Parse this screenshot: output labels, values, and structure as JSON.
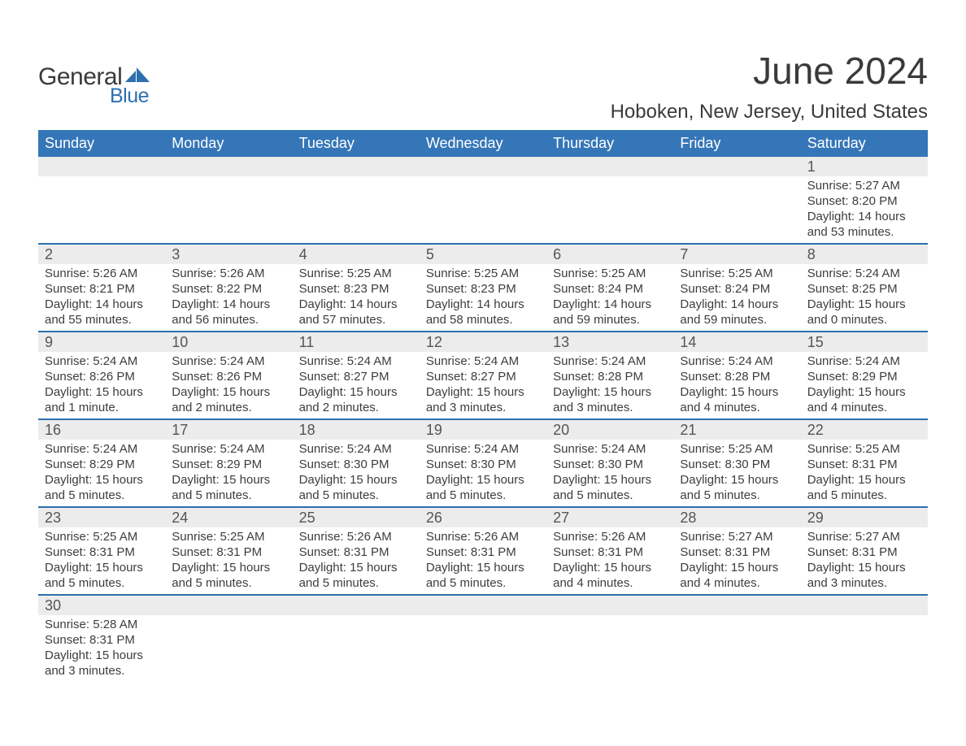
{
  "colors": {
    "header_bg": "#3576b8",
    "daynum_bg": "#ececec",
    "row_border": "#2d6fb0",
    "logo_blue": "#2d6fb0",
    "text": "#3a3a3a"
  },
  "logo": {
    "line1": "General",
    "line2": "Blue"
  },
  "title": "June 2024",
  "location": "Hoboken, New Jersey, United States",
  "weekdays": [
    "Sunday",
    "Monday",
    "Tuesday",
    "Wednesday",
    "Thursday",
    "Friday",
    "Saturday"
  ],
  "weeks": [
    [
      null,
      null,
      null,
      null,
      null,
      null,
      {
        "d": "1",
        "sr": "Sunrise: 5:27 AM",
        "ss": "Sunset: 8:20 PM",
        "dl": "Daylight: 14 hours and 53 minutes."
      }
    ],
    [
      {
        "d": "2",
        "sr": "Sunrise: 5:26 AM",
        "ss": "Sunset: 8:21 PM",
        "dl": "Daylight: 14 hours and 55 minutes."
      },
      {
        "d": "3",
        "sr": "Sunrise: 5:26 AM",
        "ss": "Sunset: 8:22 PM",
        "dl": "Daylight: 14 hours and 56 minutes."
      },
      {
        "d": "4",
        "sr": "Sunrise: 5:25 AM",
        "ss": "Sunset: 8:23 PM",
        "dl": "Daylight: 14 hours and 57 minutes."
      },
      {
        "d": "5",
        "sr": "Sunrise: 5:25 AM",
        "ss": "Sunset: 8:23 PM",
        "dl": "Daylight: 14 hours and 58 minutes."
      },
      {
        "d": "6",
        "sr": "Sunrise: 5:25 AM",
        "ss": "Sunset: 8:24 PM",
        "dl": "Daylight: 14 hours and 59 minutes."
      },
      {
        "d": "7",
        "sr": "Sunrise: 5:25 AM",
        "ss": "Sunset: 8:24 PM",
        "dl": "Daylight: 14 hours and 59 minutes."
      },
      {
        "d": "8",
        "sr": "Sunrise: 5:24 AM",
        "ss": "Sunset: 8:25 PM",
        "dl": "Daylight: 15 hours and 0 minutes."
      }
    ],
    [
      {
        "d": "9",
        "sr": "Sunrise: 5:24 AM",
        "ss": "Sunset: 8:26 PM",
        "dl": "Daylight: 15 hours and 1 minute."
      },
      {
        "d": "10",
        "sr": "Sunrise: 5:24 AM",
        "ss": "Sunset: 8:26 PM",
        "dl": "Daylight: 15 hours and 2 minutes."
      },
      {
        "d": "11",
        "sr": "Sunrise: 5:24 AM",
        "ss": "Sunset: 8:27 PM",
        "dl": "Daylight: 15 hours and 2 minutes."
      },
      {
        "d": "12",
        "sr": "Sunrise: 5:24 AM",
        "ss": "Sunset: 8:27 PM",
        "dl": "Daylight: 15 hours and 3 minutes."
      },
      {
        "d": "13",
        "sr": "Sunrise: 5:24 AM",
        "ss": "Sunset: 8:28 PM",
        "dl": "Daylight: 15 hours and 3 minutes."
      },
      {
        "d": "14",
        "sr": "Sunrise: 5:24 AM",
        "ss": "Sunset: 8:28 PM",
        "dl": "Daylight: 15 hours and 4 minutes."
      },
      {
        "d": "15",
        "sr": "Sunrise: 5:24 AM",
        "ss": "Sunset: 8:29 PM",
        "dl": "Daylight: 15 hours and 4 minutes."
      }
    ],
    [
      {
        "d": "16",
        "sr": "Sunrise: 5:24 AM",
        "ss": "Sunset: 8:29 PM",
        "dl": "Daylight: 15 hours and 5 minutes."
      },
      {
        "d": "17",
        "sr": "Sunrise: 5:24 AM",
        "ss": "Sunset: 8:29 PM",
        "dl": "Daylight: 15 hours and 5 minutes."
      },
      {
        "d": "18",
        "sr": "Sunrise: 5:24 AM",
        "ss": "Sunset: 8:30 PM",
        "dl": "Daylight: 15 hours and 5 minutes."
      },
      {
        "d": "19",
        "sr": "Sunrise: 5:24 AM",
        "ss": "Sunset: 8:30 PM",
        "dl": "Daylight: 15 hours and 5 minutes."
      },
      {
        "d": "20",
        "sr": "Sunrise: 5:24 AM",
        "ss": "Sunset: 8:30 PM",
        "dl": "Daylight: 15 hours and 5 minutes."
      },
      {
        "d": "21",
        "sr": "Sunrise: 5:25 AM",
        "ss": "Sunset: 8:30 PM",
        "dl": "Daylight: 15 hours and 5 minutes."
      },
      {
        "d": "22",
        "sr": "Sunrise: 5:25 AM",
        "ss": "Sunset: 8:31 PM",
        "dl": "Daylight: 15 hours and 5 minutes."
      }
    ],
    [
      {
        "d": "23",
        "sr": "Sunrise: 5:25 AM",
        "ss": "Sunset: 8:31 PM",
        "dl": "Daylight: 15 hours and 5 minutes."
      },
      {
        "d": "24",
        "sr": "Sunrise: 5:25 AM",
        "ss": "Sunset: 8:31 PM",
        "dl": "Daylight: 15 hours and 5 minutes."
      },
      {
        "d": "25",
        "sr": "Sunrise: 5:26 AM",
        "ss": "Sunset: 8:31 PM",
        "dl": "Daylight: 15 hours and 5 minutes."
      },
      {
        "d": "26",
        "sr": "Sunrise: 5:26 AM",
        "ss": "Sunset: 8:31 PM",
        "dl": "Daylight: 15 hours and 5 minutes."
      },
      {
        "d": "27",
        "sr": "Sunrise: 5:26 AM",
        "ss": "Sunset: 8:31 PM",
        "dl": "Daylight: 15 hours and 4 minutes."
      },
      {
        "d": "28",
        "sr": "Sunrise: 5:27 AM",
        "ss": "Sunset: 8:31 PM",
        "dl": "Daylight: 15 hours and 4 minutes."
      },
      {
        "d": "29",
        "sr": "Sunrise: 5:27 AM",
        "ss": "Sunset: 8:31 PM",
        "dl": "Daylight: 15 hours and 3 minutes."
      }
    ],
    [
      {
        "d": "30",
        "sr": "Sunrise: 5:28 AM",
        "ss": "Sunset: 8:31 PM",
        "dl": "Daylight: 15 hours and 3 minutes."
      },
      null,
      null,
      null,
      null,
      null,
      null
    ]
  ]
}
